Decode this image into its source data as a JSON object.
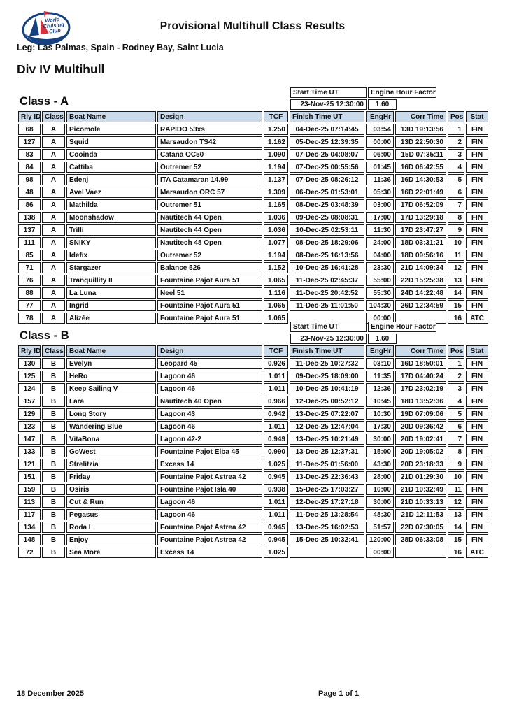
{
  "page": {
    "title": "Provisional Multihull Class Results",
    "leg": "Leg: Las Palmas, Spain - Rodney Bay, Saint Lucia",
    "division": "Div IV Multihull",
    "footer_date": "18 December 2025",
    "footer_page": "Page 1 of 1"
  },
  "logo": {
    "line1": "World",
    "line2": "Cruising",
    "line3": "Club",
    "navy": "#17407f",
    "red": "#d8303f"
  },
  "info_box": {
    "start_time_label": "Start Time UT",
    "engine_factor_label": "Engine Hour Factor",
    "start_time_value": "23-Nov-25 12:30:00",
    "engine_factor_value": "1.60"
  },
  "columns": [
    "Rly ID",
    "Class",
    "Boat Name",
    "Design",
    "TCF",
    "Finish Time UT",
    "EngHr",
    "Corr Time",
    "Pos",
    "Stat"
  ],
  "classes": [
    {
      "title": "Class - A",
      "rows": [
        [
          "68",
          "A",
          "Picomole",
          "RAPIDO 53xs",
          "1.250",
          "04-Dec-25 07:14:45",
          "03:54",
          "13D 19:13:56",
          "1",
          "FIN"
        ],
        [
          "127",
          "A",
          "Squid",
          "Marsaudon TS42",
          "1.162",
          "05-Dec-25 12:39:35",
          "00:00",
          "13D 22:50:30",
          "2",
          "FIN"
        ],
        [
          "83",
          "A",
          "Cooinda",
          "Catana OC50",
          "1.090",
          "07-Dec-25 04:08:07",
          "06:00",
          "15D 07:35:11",
          "3",
          "FIN"
        ],
        [
          "84",
          "A",
          "Cattiba",
          "Outremer 52",
          "1.194",
          "07-Dec-25 00:55:56",
          "01:45",
          "16D 06:42:55",
          "4",
          "FIN"
        ],
        [
          "98",
          "A",
          "Edenj",
          "ITA Catamaran 14.99",
          "1.137",
          "07-Dec-25 08:26:12",
          "11:36",
          "16D 14:30:53",
          "5",
          "FIN"
        ],
        [
          "48",
          "A",
          "Avel Vaez",
          "Marsaudon ORC 57",
          "1.309",
          "06-Dec-25 01:53:01",
          "05:30",
          "16D 22:01:49",
          "6",
          "FIN"
        ],
        [
          "86",
          "A",
          "Mathilda",
          "Outremer 51",
          "1.165",
          "08-Dec-25 03:48:39",
          "03:00",
          "17D 06:52:09",
          "7",
          "FIN"
        ],
        [
          "138",
          "A",
          "Moonshadow",
          "Nautitech 44 Open",
          "1.036",
          "09-Dec-25 08:08:31",
          "17:00",
          "17D 13:29:18",
          "8",
          "FIN"
        ],
        [
          "137",
          "A",
          "Trilli",
          "Nautitech 44 Open",
          "1.036",
          "10-Dec-25 02:53:11",
          "11:30",
          "17D 23:47:27",
          "9",
          "FIN"
        ],
        [
          "111",
          "A",
          "SNIKY",
          "Nautitech 48 Open",
          "1.077",
          "08-Dec-25 18:29:06",
          "24:00",
          "18D 03:31:21",
          "10",
          "FIN"
        ],
        [
          "85",
          "A",
          "Idefix",
          "Outremer 52",
          "1.194",
          "08-Dec-25 16:13:56",
          "04:00",
          "18D 09:56:16",
          "11",
          "FIN"
        ],
        [
          "71",
          "A",
          "Stargazer",
          "Balance 526",
          "1.152",
          "10-Dec-25 16:41:28",
          "23:30",
          "21D 14:09:34",
          "12",
          "FIN"
        ],
        [
          "76",
          "A",
          "Tranquillity II",
          "Fountaine Pajot Aura 51",
          "1.065",
          "11-Dec-25 02:45:37",
          "55:00",
          "22D 15:25:38",
          "13",
          "FIN"
        ],
        [
          "88",
          "A",
          "La Luna",
          "Neel 51",
          "1.116",
          "11-Dec-25 20:42:52",
          "55:30",
          "24D 14:22:48",
          "14",
          "FIN"
        ],
        [
          "77",
          "A",
          "Ingrid",
          "Fountaine Pajot Aura 51",
          "1.065",
          "11-Dec-25 11:01:50",
          "104:30",
          "26D 12:34:59",
          "15",
          "FIN"
        ],
        [
          "78",
          "A",
          "Alizée",
          "Fountaine Pajot Aura 51",
          "1.065",
          "",
          "00:00",
          "",
          "16",
          "ATC"
        ]
      ]
    },
    {
      "title": "Class - B",
      "rows": [
        [
          "130",
          "B",
          "Evelyn",
          "Leopard 45",
          "0.926",
          "11-Dec-25 10:27:32",
          "03:10",
          "16D 18:50:01",
          "1",
          "FIN"
        ],
        [
          "125",
          "B",
          "HeRo",
          "Lagoon 46",
          "1.011",
          "09-Dec-25 18:09:00",
          "11:35",
          "17D 04:40:24",
          "2",
          "FIN"
        ],
        [
          "124",
          "B",
          "Keep Sailing V",
          "Lagoon 46",
          "1.011",
          "10-Dec-25 10:41:19",
          "12:36",
          "17D 23:02:19",
          "3",
          "FIN"
        ],
        [
          "157",
          "B",
          "Lara",
          "Nautitech 40 Open",
          "0.966",
          "12-Dec-25 00:52:12",
          "10:45",
          "18D 13:52:36",
          "4",
          "FIN"
        ],
        [
          "129",
          "B",
          "Long Story",
          "Lagoon 43",
          "0.942",
          "13-Dec-25 07:22:07",
          "10:30",
          "19D 07:09:06",
          "5",
          "FIN"
        ],
        [
          "123",
          "B",
          "Wandering Blue",
          "Lagoon 46",
          "1.011",
          "12-Dec-25 12:47:04",
          "17:30",
          "20D 09:36:42",
          "6",
          "FIN"
        ],
        [
          "147",
          "B",
          "VitaBona",
          "Lagoon 42-2",
          "0.949",
          "13-Dec-25 10:21:49",
          "30:00",
          "20D 19:02:41",
          "7",
          "FIN"
        ],
        [
          "133",
          "B",
          "GoWest",
          "Fountaine Pajot Elba 45",
          "0.990",
          "13-Dec-25 12:37:31",
          "15:00",
          "20D 19:05:02",
          "8",
          "FIN"
        ],
        [
          "121",
          "B",
          "Strelitzia",
          "Excess 14",
          "1.025",
          "11-Dec-25 01:56:00",
          "43:30",
          "20D 23:18:33",
          "9",
          "FIN"
        ],
        [
          "151",
          "B",
          "Friday",
          "Fountaine Pajot Astrea 42",
          "0.945",
          "13-Dec-25 22:36:43",
          "28:00",
          "21D 01:29:30",
          "10",
          "FIN"
        ],
        [
          "159",
          "B",
          "Osiris",
          "Fountaine Pajot Isla 40",
          "0.938",
          "15-Dec-25 17:03:27",
          "10:00",
          "21D 10:32:49",
          "11",
          "FIN"
        ],
        [
          "113",
          "B",
          "Cut & Run",
          "Lagoon 46",
          "1.011",
          "12-Dec-25 17:27:18",
          "30:00",
          "21D 10:33:13",
          "12",
          "FIN"
        ],
        [
          "117",
          "B",
          "Pegasus",
          "Lagoon 46",
          "1.011",
          "11-Dec-25 13:28:54",
          "48:30",
          "21D 12:11:53",
          "13",
          "FIN"
        ],
        [
          "134",
          "B",
          "Roda I",
          "Fountaine Pajot Astrea 42",
          "0.945",
          "13-Dec-25 16:02:53",
          "51:57",
          "22D 07:30:05",
          "14",
          "FIN"
        ],
        [
          "148",
          "B",
          "Enjoy",
          "Fountaine Pajot Astrea 42",
          "0.945",
          "15-Dec-25 10:32:41",
          "120:00",
          "28D 06:33:08",
          "15",
          "FIN"
        ],
        [
          "72",
          "B",
          "Sea More",
          "Excess 14",
          "1.025",
          "",
          "00:00",
          "",
          "16",
          "ATC"
        ]
      ]
    }
  ],
  "colors": {
    "header_bg": "#cbdbeb",
    "border": "#1a1a1a",
    "logo_navy": "#17407f",
    "logo_red": "#d8303f"
  }
}
